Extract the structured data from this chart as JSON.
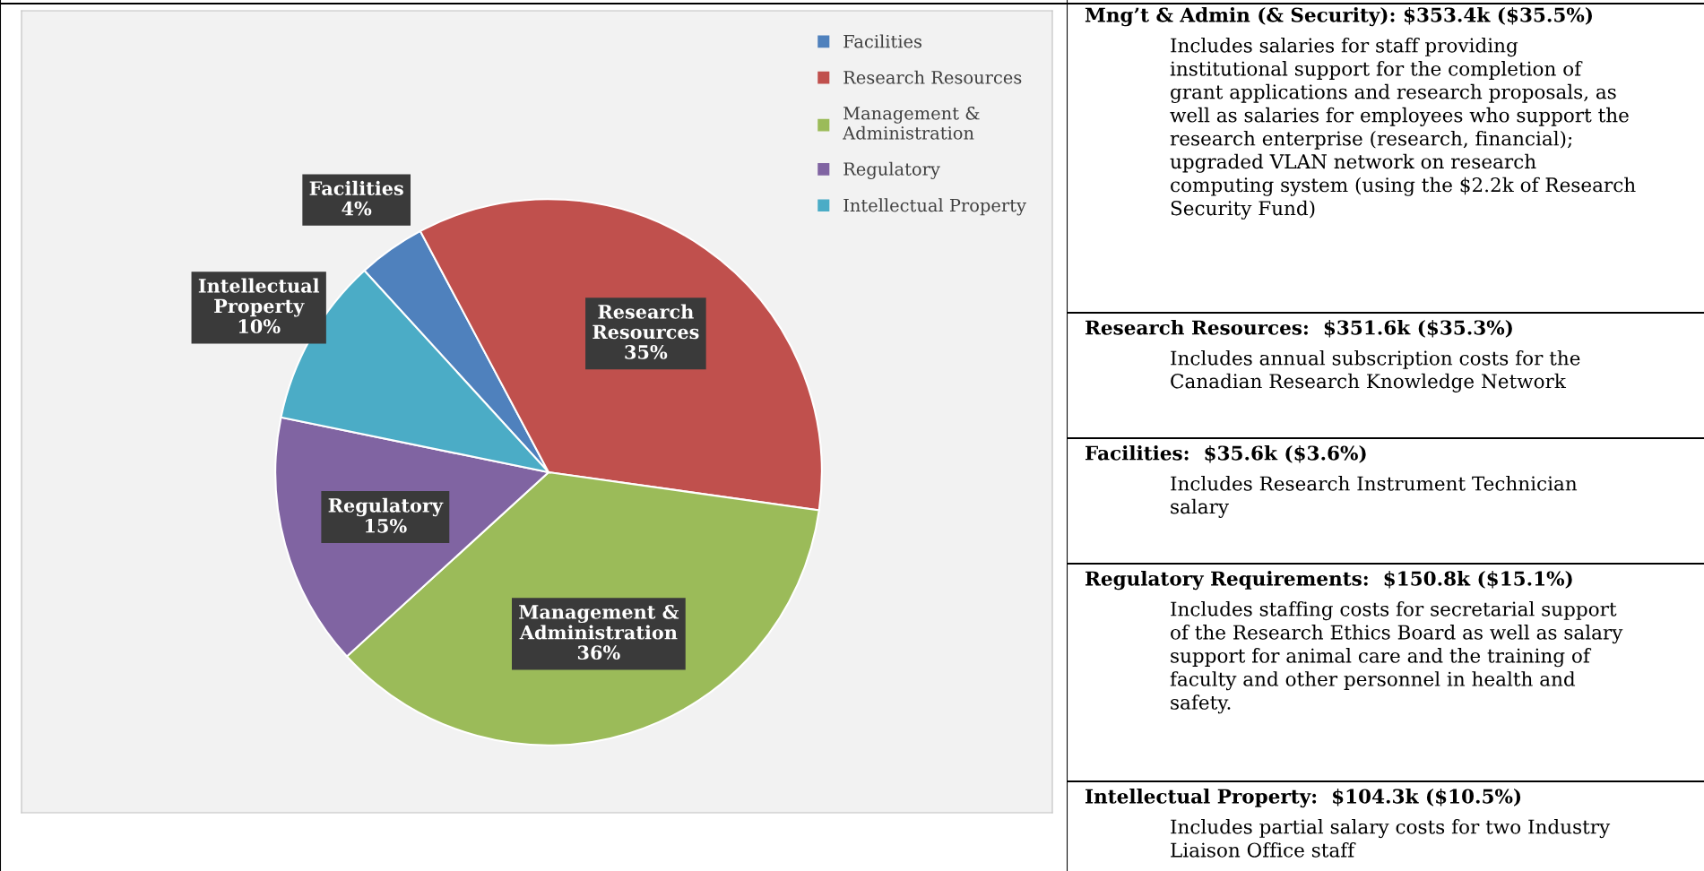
{
  "chart_data": [
    {
      "type": "pie",
      "categories": [
        "Facilities",
        "Research Resources",
        "Management &\nAdministration",
        "Regulatory",
        "Intellectual Property"
      ],
      "values": [
        4,
        35,
        36,
        15,
        10
      ],
      "colors": [
        "#4f81bd",
        "#c0504d",
        "#9bbb59",
        "#8064a2",
        "#4bacc6"
      ],
      "value_labels": [
        "Facilities\n4%",
        "Research\nResources\n35%",
        "Management &\nAdministration\n36%",
        "Regulatory\n15%",
        "Intellectual\nProperty\n10%"
      ],
      "legend": "top right"
    },
    {
      "type": "other",
      "annotations": [
        "Mng’t & Admin (& Security): $353.4k ($35.5%)",
        "Includes salaries for staff providing\ninstitutional support for the completion of\ngrant applications and research proposals, as\nwell as salaries for employees who support the\nresearch enterprise (research, financial);\nupgraded VLAN network on research\ncomputing system (using the $2.2k of Research\nSecurity Fund)",
        "Research Resources:  $351.6k ($35.3%)",
        "Includes annual subscription costs for the\nCanadian Research Knowledge Network",
        "Facilities:  $35.6k ($3.6%)",
        "Includes Research Instrument Technician\nsalary",
        "Regulatory Requirements:  $150.8k ($15.1%)",
        "Includes staffing costs for secretarial support\nof the Research Ethics Board as well as salary\nsupport for animal care and the training of\nfaculty and other personnel in health and\nsafety.",
        "Intellectual Property:  $104.3k ($10.5%)",
        "Includes partial salary costs for two Industry\nLiaison Office staff"
      ]
    }
  ]
}
